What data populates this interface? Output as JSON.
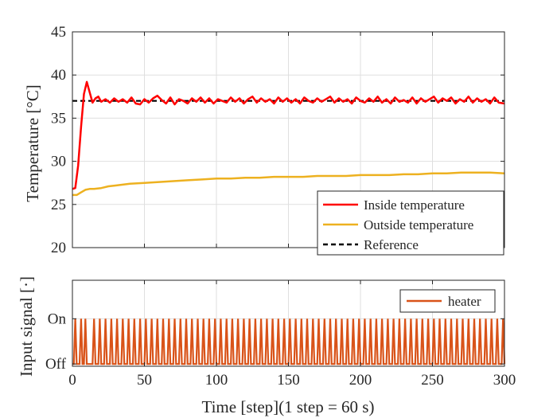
{
  "chart_data": [
    {
      "type": "line",
      "ylabel": "Temperature [°C]",
      "xlim": [
        0,
        300
      ],
      "ylim": [
        20,
        45
      ],
      "x_ticks": [
        0,
        50,
        100,
        150,
        200,
        250,
        300
      ],
      "y_ticks": [
        20,
        25,
        30,
        35,
        40,
        45
      ],
      "grid": true,
      "legend_position": "bottom-right",
      "series": [
        {
          "name": "Inside temperature",
          "color": "#ff0000",
          "style": "solid",
          "x": [
            0,
            2,
            4,
            6,
            8,
            10,
            12,
            14,
            16,
            18,
            20,
            23,
            26,
            29,
            32,
            35,
            38,
            41,
            44,
            47,
            50,
            53,
            56,
            59,
            62,
            65,
            68,
            71,
            74,
            77,
            80,
            83,
            86,
            89,
            92,
            95,
            98,
            101,
            104,
            107,
            110,
            113,
            116,
            119,
            122,
            125,
            128,
            131,
            134,
            137,
            140,
            143,
            146,
            149,
            152,
            155,
            158,
            161,
            164,
            167,
            170,
            173,
            176,
            179,
            182,
            185,
            188,
            191,
            194,
            197,
            200,
            203,
            206,
            209,
            212,
            215,
            218,
            221,
            224,
            227,
            230,
            233,
            236,
            239,
            242,
            245,
            248,
            251,
            254,
            257,
            260,
            263,
            266,
            269,
            272,
            275,
            278,
            281,
            284,
            287,
            290,
            293,
            296,
            300
          ],
          "y": [
            26.8,
            26.9,
            29.5,
            34.0,
            37.8,
            39.2,
            38.0,
            36.8,
            37.3,
            37.5,
            36.9,
            37.2,
            36.8,
            37.3,
            36.9,
            37.2,
            36.8,
            37.4,
            36.7,
            36.6,
            37.2,
            36.8,
            37.3,
            37.6,
            37.1,
            36.7,
            37.4,
            36.6,
            37.2,
            37.0,
            36.7,
            37.3,
            36.9,
            37.4,
            36.8,
            37.3,
            36.7,
            37.2,
            37.0,
            36.8,
            37.4,
            36.9,
            37.3,
            36.7,
            37.2,
            37.5,
            36.8,
            37.3,
            36.9,
            37.2,
            36.7,
            37.4,
            36.9,
            37.3,
            36.8,
            37.2,
            36.7,
            37.4,
            37.0,
            36.8,
            37.3,
            36.9,
            37.2,
            37.5,
            36.8,
            37.3,
            36.9,
            37.2,
            36.7,
            37.4,
            37.0,
            36.8,
            37.3,
            36.9,
            37.5,
            36.8,
            37.2,
            36.7,
            37.4,
            36.9,
            37.1,
            36.8,
            37.4,
            36.7,
            37.3,
            36.9,
            37.2,
            37.5,
            36.8,
            37.3,
            37.0,
            37.4,
            36.7,
            37.2,
            36.9,
            37.5,
            36.8,
            37.3,
            36.9,
            37.2,
            36.7,
            37.4,
            36.8,
            36.7
          ]
        },
        {
          "name": "Outside temperature",
          "color": "#edb120",
          "style": "solid",
          "x": [
            0,
            3,
            6,
            9,
            12,
            15,
            20,
            25,
            30,
            35,
            40,
            50,
            60,
            70,
            80,
            90,
            100,
            110,
            120,
            130,
            140,
            150,
            160,
            170,
            180,
            190,
            200,
            210,
            220,
            230,
            240,
            250,
            260,
            270,
            280,
            290,
            300
          ],
          "y": [
            26.1,
            26.1,
            26.4,
            26.7,
            26.8,
            26.8,
            26.9,
            27.1,
            27.2,
            27.3,
            27.4,
            27.5,
            27.6,
            27.7,
            27.8,
            27.9,
            28.0,
            28.0,
            28.1,
            28.1,
            28.2,
            28.2,
            28.2,
            28.3,
            28.3,
            28.3,
            28.4,
            28.4,
            28.4,
            28.5,
            28.5,
            28.6,
            28.6,
            28.7,
            28.7,
            28.7,
            28.6
          ]
        },
        {
          "name": "Reference",
          "color": "#000000",
          "style": "dashed",
          "x": [
            0,
            300
          ],
          "y": [
            37,
            37
          ]
        }
      ]
    },
    {
      "type": "line",
      "xlabel": "Time [step](1 step = 60 s)",
      "ylabel": "Input signal [·]",
      "xlim": [
        0,
        300
      ],
      "ylim": [
        -0.05,
        1.85
      ],
      "x_ticks": [
        0,
        50,
        100,
        150,
        200,
        250,
        300
      ],
      "y_ticks": [
        0,
        1
      ],
      "y_tick_labels": [
        "Off",
        "On"
      ],
      "grid": true,
      "legend_position": "top-right",
      "series": [
        {
          "name": "heater",
          "color": "#d95319",
          "style": "solid",
          "onset_steps": [
            1,
            5,
            8,
            14,
            18,
            22,
            26,
            30,
            34,
            38,
            42,
            46,
            50,
            54,
            58,
            62,
            66,
            70,
            74,
            78,
            82,
            86,
            90,
            94,
            98,
            102,
            106,
            110,
            114,
            118,
            122,
            126,
            130,
            134,
            138,
            142,
            146,
            150,
            154,
            158,
            162,
            166,
            170,
            174,
            178,
            182,
            186,
            190,
            194,
            198,
            202,
            206,
            210,
            214,
            218,
            222,
            226,
            230,
            234,
            238,
            242,
            246,
            250,
            254,
            258,
            262,
            266,
            270,
            274,
            278,
            282,
            286,
            290,
            294,
            298
          ],
          "on_duration": 2
        }
      ]
    }
  ]
}
